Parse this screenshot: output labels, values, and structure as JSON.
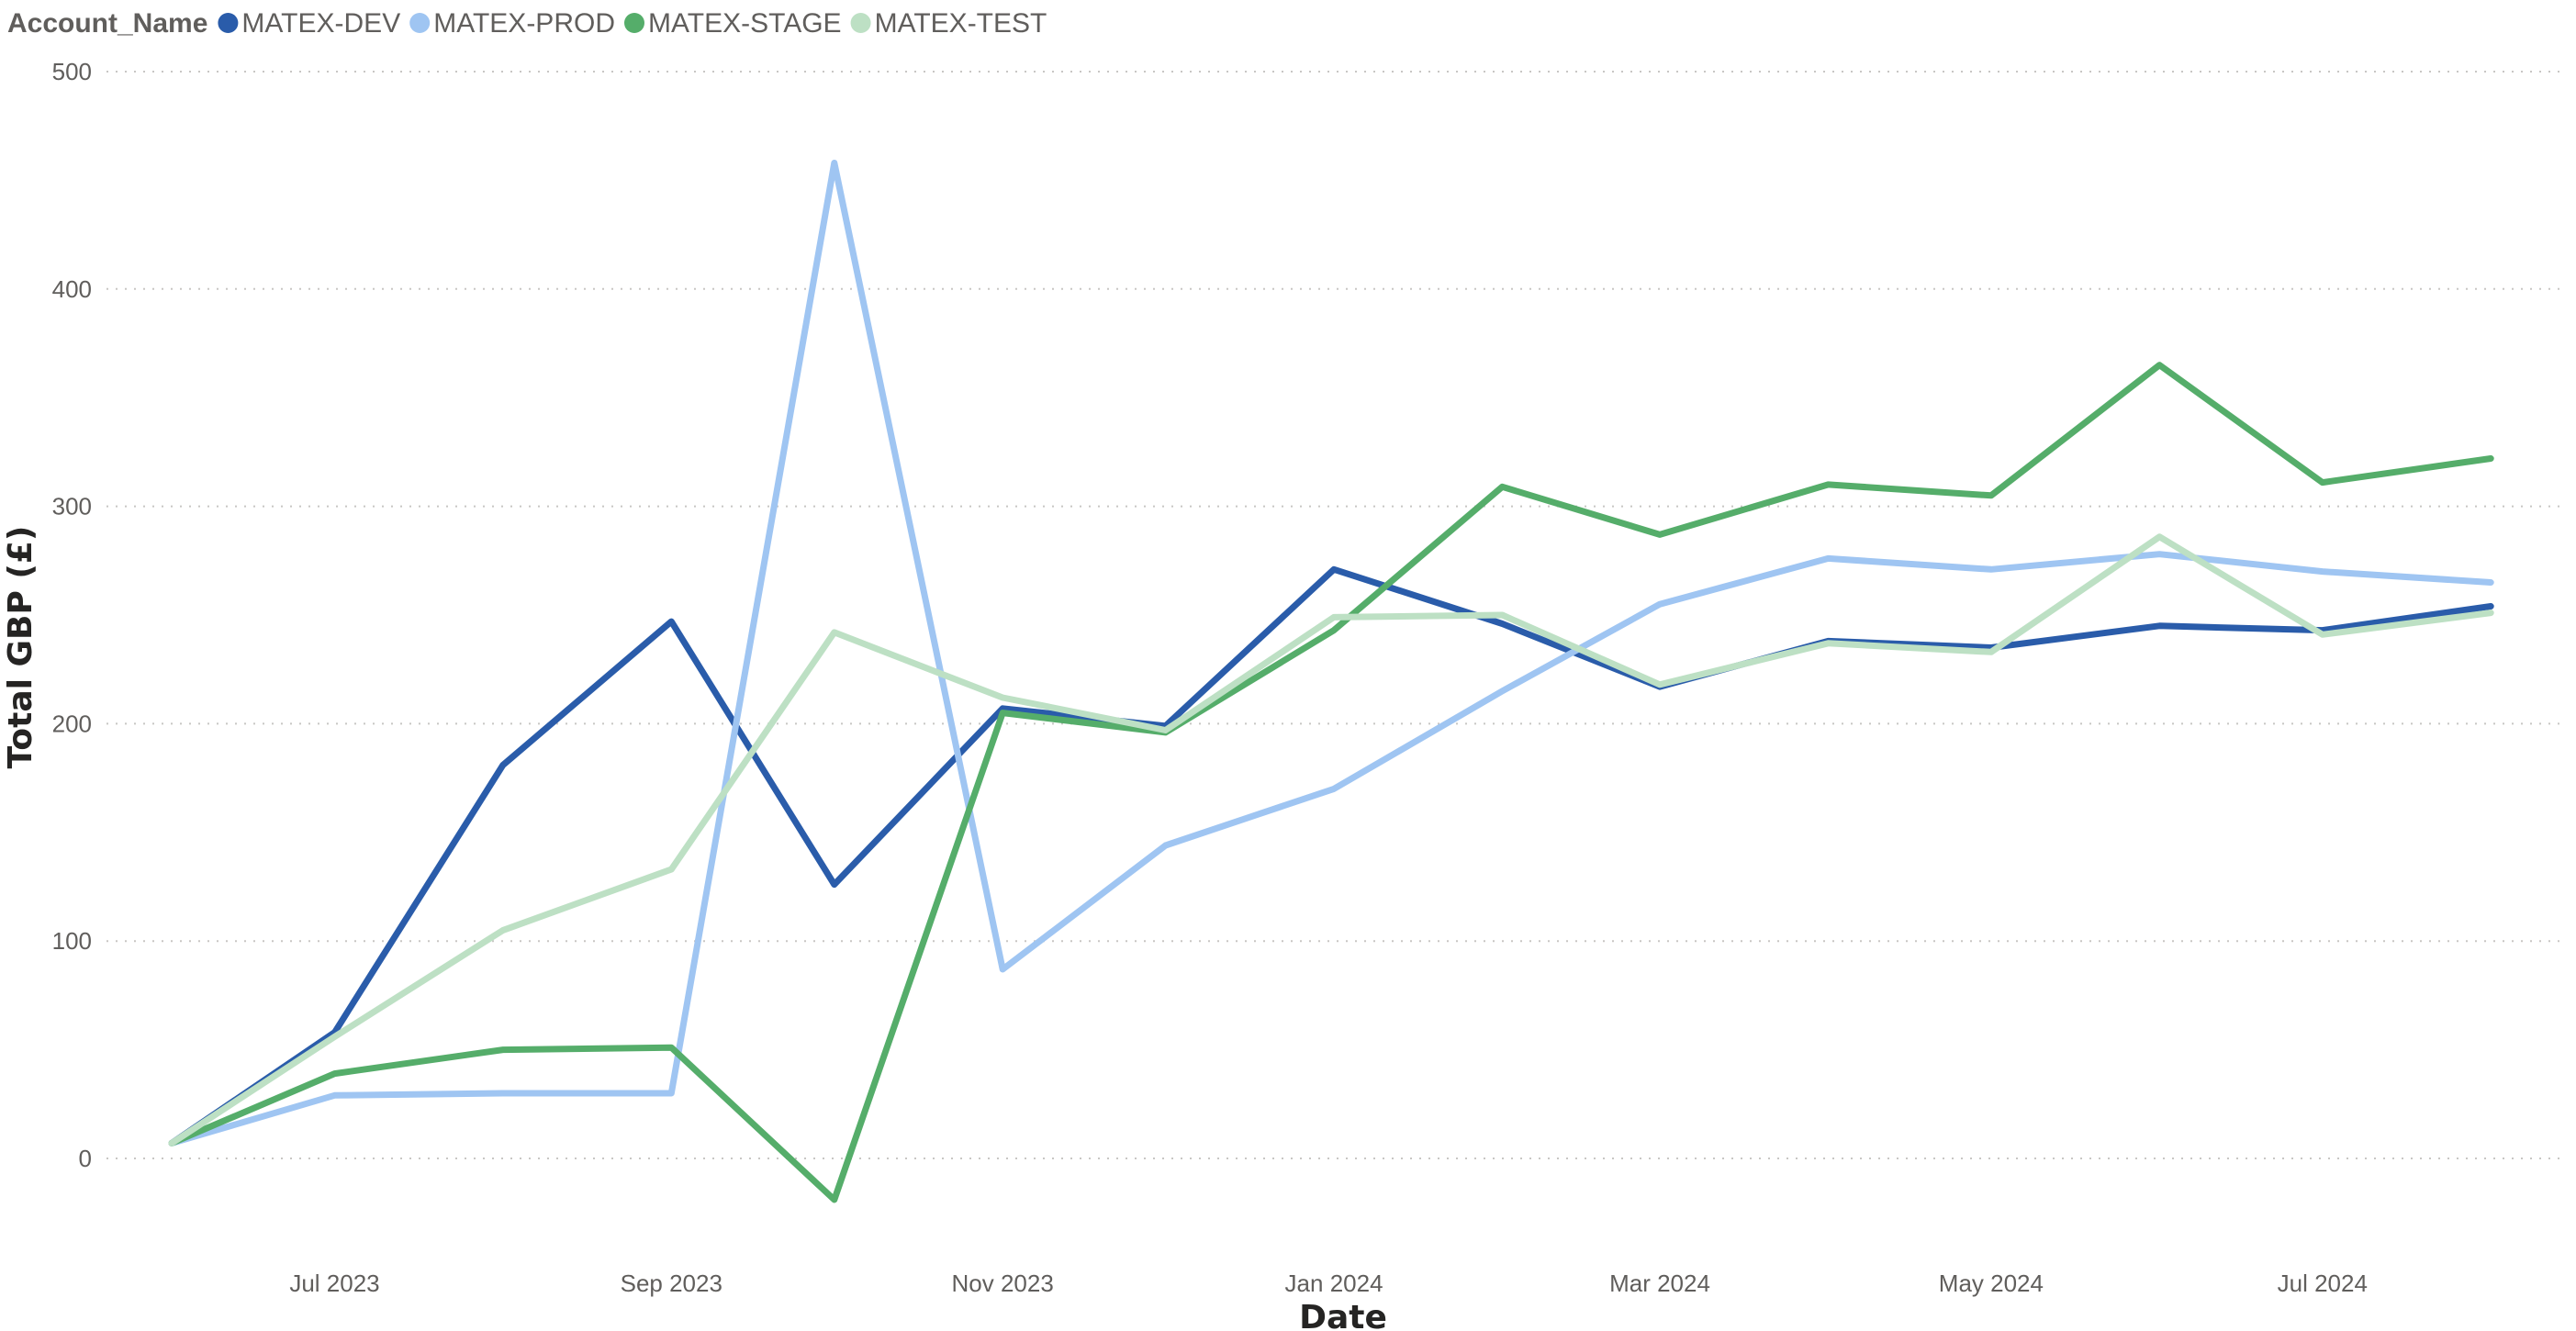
{
  "chart_data": {
    "type": "line",
    "legend": {
      "title": "Account_Name",
      "position": "top-left"
    },
    "xlabel": "Date",
    "ylabel": "Total GBP (£)",
    "ylim": [
      -40,
      500
    ],
    "yticks": [
      0,
      100,
      200,
      300,
      400,
      500
    ],
    "grid": true,
    "x": [
      "2023-06-01",
      "2023-07-01",
      "2023-08-01",
      "2023-09-01",
      "2023-10-01",
      "2023-11-01",
      "2023-12-01",
      "2024-01-01",
      "2024-02-01",
      "2024-03-01",
      "2024-04-01",
      "2024-05-01",
      "2024-06-01",
      "2024-07-01",
      "2024-08-01"
    ],
    "xlim": [
      "2023-05-20",
      "2024-08-15"
    ],
    "xticks": [
      {
        "date": "2023-07-01",
        "label": "Jul 2023"
      },
      {
        "date": "2023-09-01",
        "label": "Sep 2023"
      },
      {
        "date": "2023-11-01",
        "label": "Nov 2023"
      },
      {
        "date": "2024-01-01",
        "label": "Jan 2024"
      },
      {
        "date": "2024-03-01",
        "label": "Mar 2024"
      },
      {
        "date": "2024-05-01",
        "label": "May 2024"
      },
      {
        "date": "2024-07-01",
        "label": "Jul 2024"
      }
    ],
    "series": [
      {
        "name": "MATEX-DEV",
        "color": "#2a5caa",
        "values": [
          7,
          58,
          181,
          247,
          126,
          207,
          199,
          271,
          246,
          217,
          238,
          235,
          245,
          243,
          254
        ]
      },
      {
        "name": "MATEX-PROD",
        "color": "#9fc5f2",
        "values": [
          7,
          29,
          30,
          30,
          458,
          87,
          144,
          170,
          215,
          255,
          276,
          271,
          278,
          270,
          265
        ]
      },
      {
        "name": "MATEX-STAGE",
        "color": "#55ad6a",
        "values": [
          7,
          39,
          50,
          51,
          -19,
          205,
          196,
          243,
          309,
          287,
          310,
          305,
          365,
          311,
          322
        ]
      },
      {
        "name": "MATEX-TEST",
        "color": "#bde0c4",
        "values": [
          7,
          56,
          105,
          133,
          242,
          212,
          197,
          249,
          250,
          218,
          237,
          233,
          286,
          241,
          251
        ]
      }
    ]
  }
}
